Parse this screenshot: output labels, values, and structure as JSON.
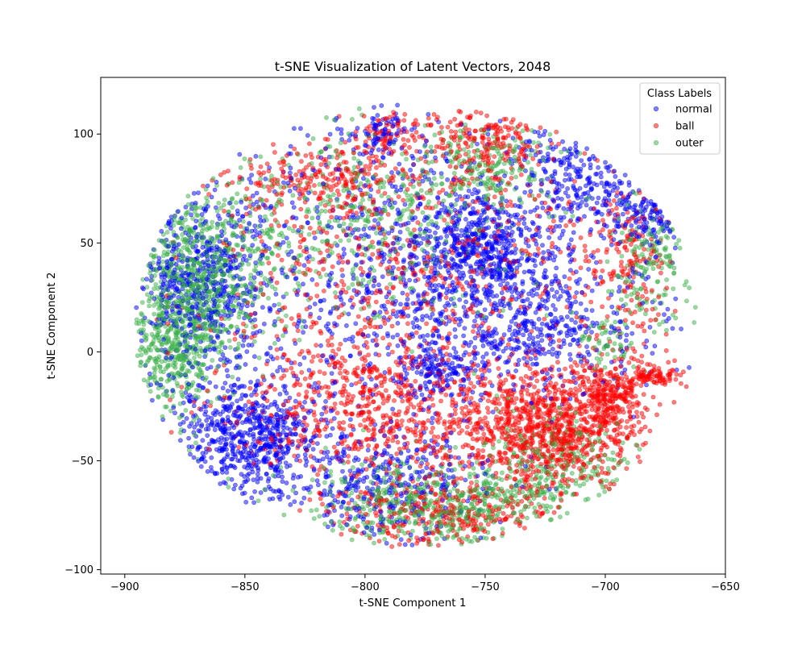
{
  "chart_data": {
    "type": "scatter",
    "title": "t-SNE Visualization of Latent Vectors, 2048",
    "xlabel": "t-SNE Component 1",
    "ylabel": "t-SNE Component 2",
    "xlim": [
      -910,
      -650
    ],
    "ylim": [
      -102,
      126
    ],
    "xticks": [
      -900,
      -850,
      -800,
      -750,
      -700,
      -650
    ],
    "yticks": [
      -100,
      -50,
      0,
      50,
      100
    ],
    "xtick_labels": [
      "−900",
      "−850",
      "−800",
      "−750",
      "−700",
      "−650"
    ],
    "ytick_labels": [
      "−100",
      "−50",
      "0",
      "50",
      "100"
    ],
    "grid": false,
    "legend": {
      "title": "Class Labels",
      "placement": "top-right"
    },
    "point_alpha": 0.5,
    "series": [
      {
        "name": "normal",
        "color": "#0000ff",
        "clusters": [
          {
            "x": -785,
            "y": 45,
            "sx": 50,
            "sy": 35,
            "n": 900
          },
          {
            "x": -870,
            "y": 30,
            "sx": 14,
            "sy": 20,
            "n": 500
          },
          {
            "x": -848,
            "y": -40,
            "sx": 15,
            "sy": 15,
            "n": 650
          },
          {
            "x": -752,
            "y": 48,
            "sx": 12,
            "sy": 12,
            "n": 450
          },
          {
            "x": -790,
            "y": -60,
            "sx": 22,
            "sy": 14,
            "n": 350
          },
          {
            "x": -770,
            "y": -8,
            "sx": 10,
            "sy": 8,
            "n": 160
          },
          {
            "x": -680,
            "y": 65,
            "sx": 9,
            "sy": 8,
            "n": 120
          },
          {
            "x": -710,
            "y": 80,
            "sx": 16,
            "sy": 12,
            "n": 220
          },
          {
            "x": -740,
            "y": 10,
            "sx": 30,
            "sy": 15,
            "n": 320
          },
          {
            "x": -793,
            "y": 100,
            "sx": 6,
            "sy": 5,
            "n": 70
          },
          {
            "x": -725,
            "y": 20,
            "sx": 15,
            "sy": 15,
            "n": 180
          }
        ]
      },
      {
        "name": "ball",
        "color": "#ff0000",
        "clusters": [
          {
            "x": -725,
            "y": -35,
            "sx": 20,
            "sy": 15,
            "n": 1000
          },
          {
            "x": -798,
            "y": -25,
            "sx": 28,
            "sy": 18,
            "n": 650
          },
          {
            "x": -780,
            "y": 40,
            "sx": 45,
            "sy": 30,
            "n": 650
          },
          {
            "x": -697,
            "y": -20,
            "sx": 6,
            "sy": 8,
            "n": 220
          },
          {
            "x": -680,
            "y": -11,
            "sx": 6,
            "sy": 2.5,
            "n": 90
          },
          {
            "x": -820,
            "y": 80,
            "sx": 25,
            "sy": 8,
            "n": 220
          },
          {
            "x": -750,
            "y": 95,
            "sx": 15,
            "sy": 10,
            "n": 220
          },
          {
            "x": -690,
            "y": 40,
            "sx": 8,
            "sy": 18,
            "n": 160
          },
          {
            "x": -770,
            "y": -75,
            "sx": 25,
            "sy": 8,
            "n": 300
          },
          {
            "x": -790,
            "y": 100,
            "sx": 6,
            "sy": 5,
            "n": 60
          }
        ]
      },
      {
        "name": "outer",
        "color": "#3cb04a",
        "clusters": [
          {
            "x": -868,
            "y": 35,
            "sx": 14,
            "sy": 18,
            "n": 700
          },
          {
            "x": -880,
            "y": 0,
            "sx": 10,
            "sy": 15,
            "n": 350
          },
          {
            "x": -770,
            "y": -70,
            "sx": 28,
            "sy": 10,
            "n": 550
          },
          {
            "x": -800,
            "y": 60,
            "sx": 35,
            "sy": 20,
            "n": 500
          },
          {
            "x": -680,
            "y": 45,
            "sx": 8,
            "sy": 15,
            "n": 160
          },
          {
            "x": -745,
            "y": 85,
            "sx": 15,
            "sy": 10,
            "n": 180
          },
          {
            "x": -720,
            "y": -50,
            "sx": 15,
            "sy": 12,
            "n": 250
          },
          {
            "x": -700,
            "y": 5,
            "sx": 6,
            "sy": 6,
            "n": 60
          }
        ]
      }
    ]
  }
}
